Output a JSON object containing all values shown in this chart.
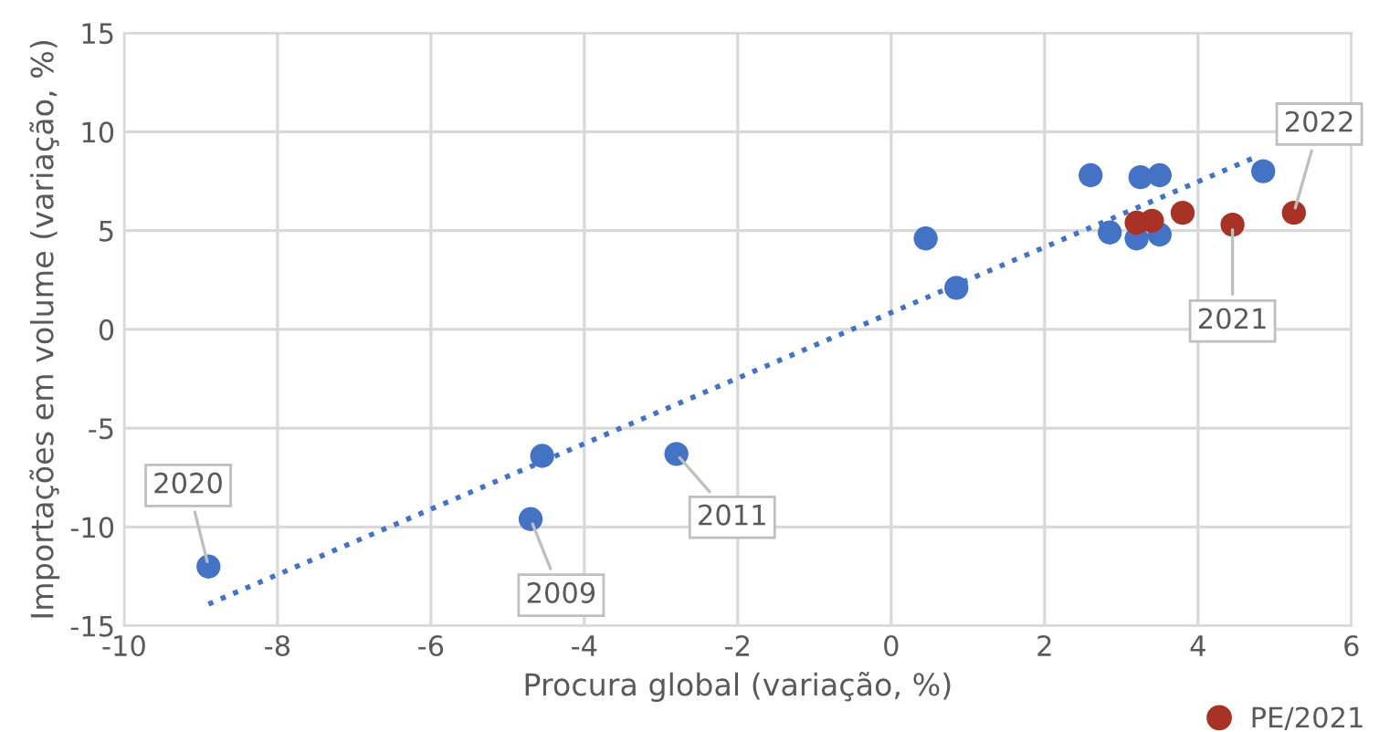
{
  "chart_data": {
    "type": "scatter",
    "xlabel": "Procura global (variação, %)",
    "ylabel": "Importações em volume (variação, %)",
    "xlim": [
      -10,
      6
    ],
    "xticks": [
      -10,
      -8,
      -6,
      -4,
      -2,
      0,
      2,
      4,
      6
    ],
    "ylim": [
      -15,
      15
    ],
    "yticks": [
      -15,
      -10,
      -5,
      0,
      5,
      10,
      15
    ],
    "grid": true,
    "legend": "bottom right",
    "marker": "circle",
    "series": [
      {
        "color": "#4472c4",
        "x": [
          -8.9,
          -4.7,
          -4.55,
          -2.8,
          0.45,
          0.85,
          2.6,
          3.25,
          3.5,
          4.85,
          2.85,
          3.2,
          3.5
        ],
        "values": [
          -12.0,
          -9.6,
          -6.4,
          -6.3,
          4.6,
          2.1,
          7.8,
          7.7,
          7.8,
          8.0,
          4.9,
          4.6,
          4.8
        ]
      },
      {
        "name": "PE/2021",
        "color": "#a93226",
        "x": [
          3.2,
          3.4,
          3.8,
          4.45,
          5.25
        ],
        "values": [
          5.4,
          5.5,
          5.9,
          5.3,
          5.9
        ]
      },
      {
        "type": "line",
        "line_style": "dotted",
        "marker": "none",
        "color": "#4472c4",
        "x": [
          -8.9,
          4.8
        ],
        "values": [
          -13.9,
          8.8
        ]
      }
    ],
    "annotations": [
      {
        "text": "2020",
        "x": -8.9,
        "y": -12.0
      },
      {
        "text": "2009",
        "x": -4.7,
        "y": -9.6
      },
      {
        "text": "2011",
        "x": -2.8,
        "y": -6.3
      },
      {
        "text": "2021",
        "x": 4.45,
        "y": 5.3
      },
      {
        "text": "2022",
        "x": 5.25,
        "y": 5.9
      }
    ]
  }
}
